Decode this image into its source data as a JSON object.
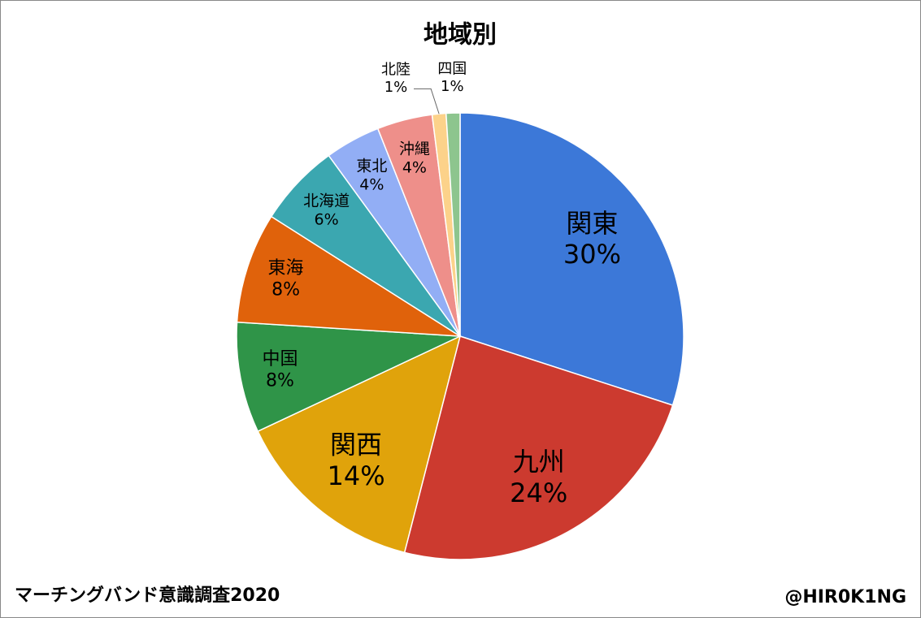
{
  "chart_data": {
    "type": "pie",
    "title": "地域別",
    "categories": [
      "関東",
      "九州",
      "関西",
      "中国",
      "東海",
      "北海道",
      "東北",
      "沖縄",
      "北陸",
      "四国"
    ],
    "values": [
      30,
      24,
      14,
      8,
      8,
      6,
      4,
      4,
      1,
      1
    ],
    "value_labels": [
      "30%",
      "24%",
      "14%",
      "8%",
      "8%",
      "6%",
      "4%",
      "4%",
      "1%",
      "1%"
    ],
    "colors": [
      "#3c78d8",
      "#cc3a2f",
      "#e0a30b",
      "#2f9448",
      "#e0620b",
      "#3ba7b0",
      "#92aef5",
      "#ee8f8a",
      "#fcd28a",
      "#8dc58e"
    ],
    "footer_left": "マーチングバンド意識調査2020",
    "footer_right": "@HIR0K1NG"
  }
}
